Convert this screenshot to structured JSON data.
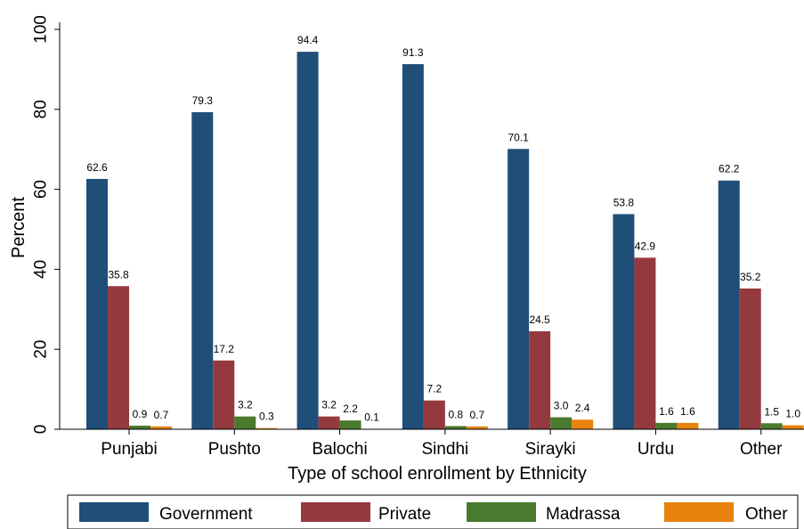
{
  "chart_data": {
    "type": "bar",
    "title": "",
    "xlabel": "Type of school enrollment by Ethnicity",
    "ylabel": "Percent",
    "ylim": [
      0,
      100
    ],
    "yticks": [
      "0",
      "20",
      "40",
      "60",
      "80",
      "100"
    ],
    "grid": false,
    "legend_position": "bottom",
    "categories": [
      "Punjabi",
      "Pushto",
      "Balochi",
      "Sindhi",
      "Sirayki",
      "Urdu",
      "Other"
    ],
    "series": [
      {
        "name": "Government",
        "color": "#1f4e79",
        "values": [
          62.6,
          79.3,
          94.4,
          91.3,
          70.1,
          53.8,
          62.2
        ],
        "labels": [
          "62.6",
          "79.3",
          "94.4",
          "91.3",
          "70.1",
          "53.8",
          "62.2"
        ]
      },
      {
        "name": "Private",
        "color": "#943a3f",
        "values": [
          35.8,
          17.2,
          3.2,
          7.2,
          24.5,
          42.9,
          35.2
        ],
        "labels": [
          "35.8",
          "17.2",
          "3.2",
          "7.2",
          "24.5",
          "42.9",
          "35.2"
        ]
      },
      {
        "name": "Madrassa",
        "color": "#4a7a2e",
        "values": [
          0.9,
          3.2,
          2.2,
          0.8,
          3.0,
          1.6,
          1.5
        ],
        "labels": [
          "0.9",
          "3.2",
          "2.2",
          "0.8",
          "3.0",
          "1.6",
          "1.5"
        ]
      },
      {
        "name": "Other",
        "color": "#e8820c",
        "values": [
          0.7,
          0.3,
          0.1,
          0.7,
          2.4,
          1.6,
          1.0
        ],
        "labels": [
          "0.7",
          "0.3",
          "0.1",
          "0.7",
          "2.4",
          "1.6",
          "1.0"
        ]
      }
    ]
  }
}
